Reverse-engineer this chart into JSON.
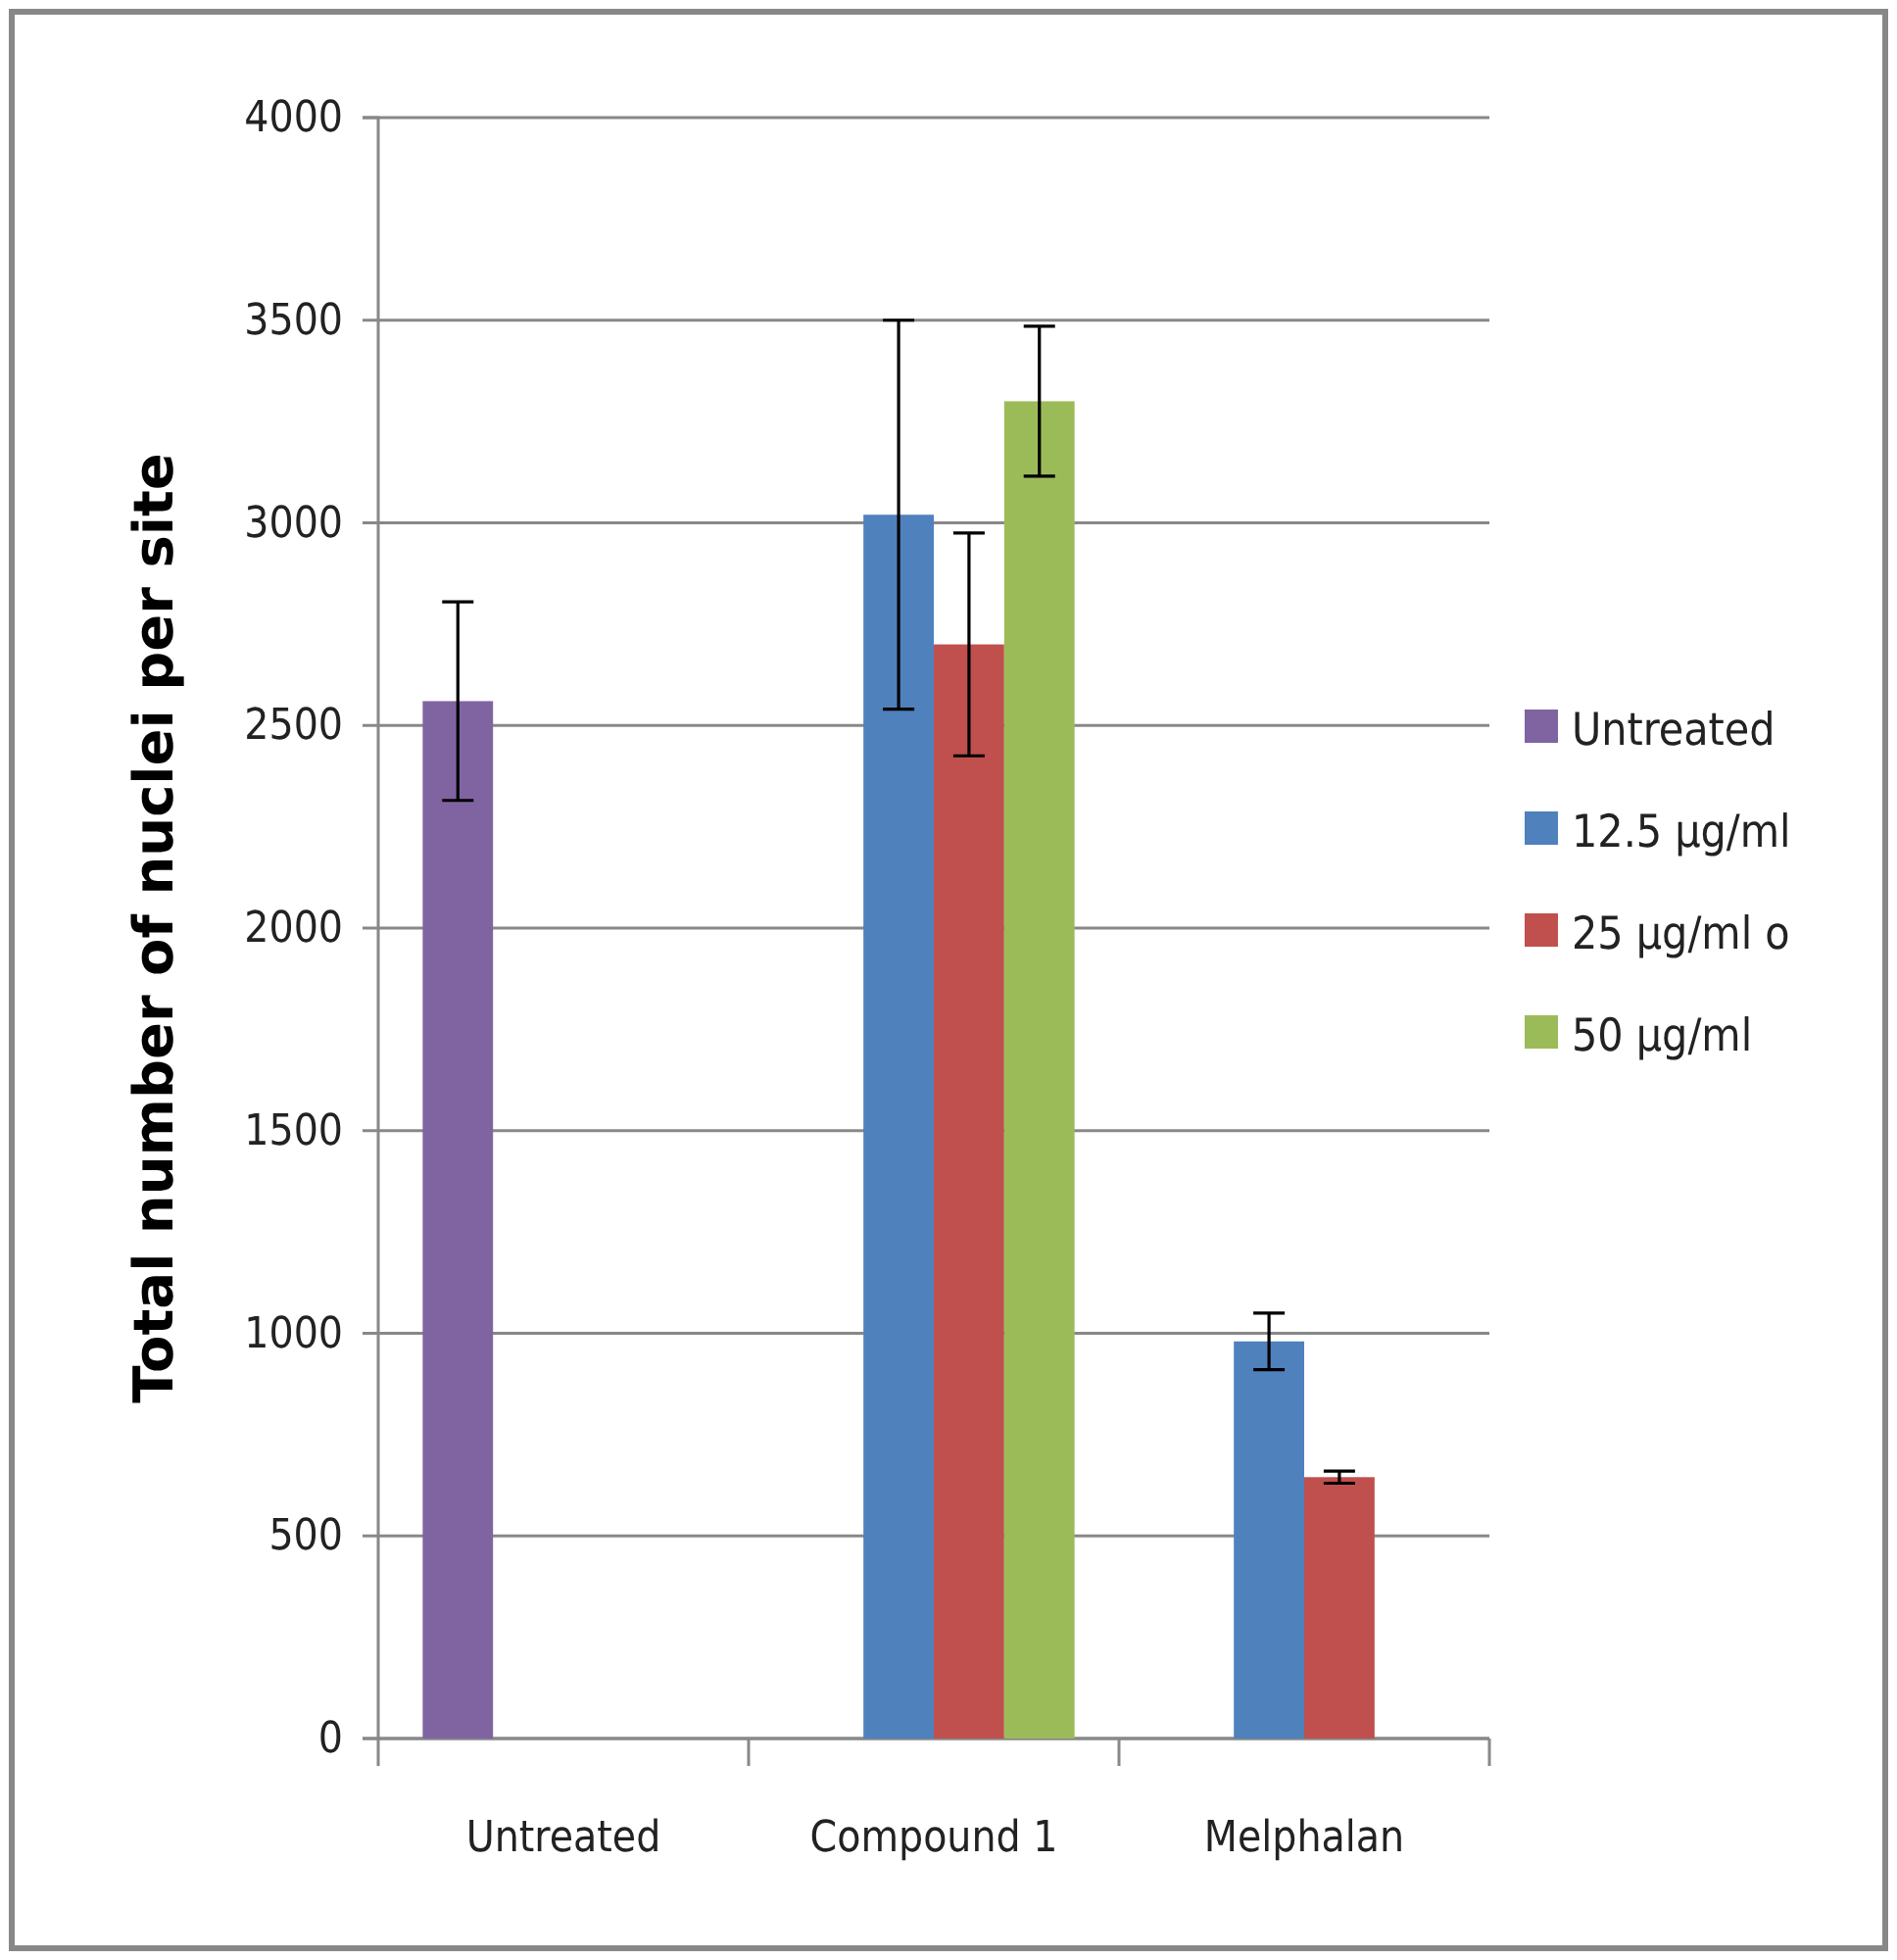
{
  "chart_data": {
    "type": "bar",
    "ylabel": "Total number of nuclei per site",
    "categories": [
      "Untreated",
      "Compound 1",
      "Melphalan"
    ],
    "series": [
      {
        "name": "Untreated",
        "color": "#8064a2",
        "values": [
          2560,
          null,
          null
        ],
        "errors": [
          245,
          null,
          null
        ]
      },
      {
        "name": "12.5 µg/ml",
        "color": "#4f81bd",
        "values": [
          null,
          3020,
          980
        ],
        "errors": [
          null,
          480,
          70
        ]
      },
      {
        "name": "25 µg/ml o",
        "color": "#c0504d",
        "values": [
          null,
          2700,
          645
        ],
        "errors": [
          null,
          275,
          15
        ]
      },
      {
        "name": "50 µg/ml",
        "color": "#9bbb59",
        "values": [
          null,
          3300,
          null
        ],
        "errors": [
          null,
          185,
          null
        ]
      }
    ],
    "ylim": [
      0,
      4000
    ],
    "yticks": [
      0,
      500,
      1000,
      1500,
      2000,
      2500,
      3000,
      3500,
      4000
    ],
    "grid": "y",
    "legend": "right"
  }
}
